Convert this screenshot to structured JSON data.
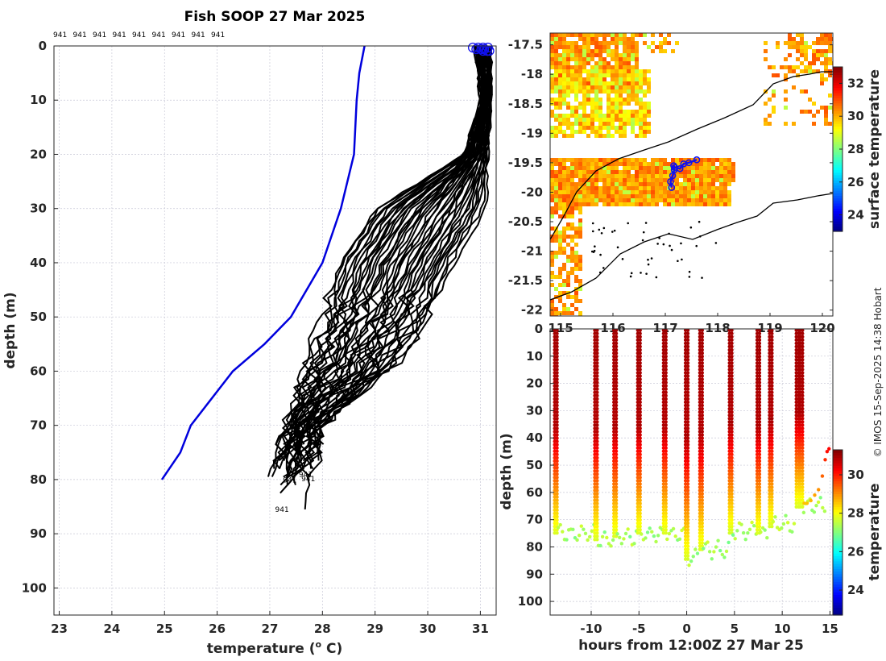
{
  "colors": {
    "model_profile": "#0000dd",
    "ship_profiles": "#000000",
    "start_markers": "#1010ee",
    "track": "#1010ee",
    "coast": "#000000",
    "grid": "#c8c8d6",
    "axis": "#262626"
  },
  "chart_data": [
    {
      "id": "profiles",
      "type": "line",
      "title": "Fish SOOP 27 Mar 2025",
      "xlabel": "temperature (o C)",
      "ylabel": "depth (m)",
      "xlim": [
        22.9,
        31.3
      ],
      "ylim": [
        105,
        0
      ],
      "xticks": [
        23,
        24,
        25,
        26,
        27,
        28,
        29,
        30,
        31
      ],
      "yticks": [
        0,
        10,
        20,
        30,
        40,
        50,
        60,
        70,
        80,
        90,
        100
      ],
      "station_ids": [
        "941",
        "941",
        "941",
        "941",
        "941",
        "941",
        "941",
        "941",
        "941"
      ],
      "end_labels": [
        "941",
        "941",
        "941",
        "941"
      ],
      "model_profile": {
        "temperature": [
          28.8,
          28.7,
          28.65,
          28.6,
          28.35,
          28.0,
          27.4,
          26.9,
          26.3,
          25.5,
          25.3,
          24.95
        ],
        "depth": [
          0,
          5,
          10,
          20,
          30,
          40,
          50,
          55,
          60,
          70,
          75,
          80
        ]
      },
      "ship_profile_count": 40,
      "ship_profiles_envelope": {
        "depth": [
          0,
          10,
          20,
          30,
          40,
          50,
          60,
          70,
          80
        ],
        "t_warm": [
          31.2,
          31.2,
          31.15,
          31.1,
          30.5,
          30.0,
          29.3,
          28.0,
          27.8
        ],
        "t_cool": [
          30.9,
          31.0,
          30.7,
          29.0,
          28.3,
          28.0,
          27.6,
          27.3,
          27.0
        ]
      }
    },
    {
      "id": "sst_map",
      "type": "heatmap",
      "colorbar_label": "surface temperature",
      "colorbar_ticks": [
        24,
        26,
        28,
        30,
        32
      ],
      "clim": [
        23,
        33
      ],
      "xlim": [
        114.8,
        120.2
      ],
      "ylim": [
        -22.1,
        -17.3
      ],
      "yticks": [
        -17.5,
        -18,
        -18.5,
        -19,
        -19.5,
        -20,
        -20.5,
        -21,
        -21.5,
        -22
      ],
      "ytick_labels": [
        "-17.5",
        "-18",
        "-18.5",
        "-19",
        "-19.5",
        "-20",
        "-20.5",
        "-21",
        "-21.5",
        "-22"
      ],
      "xtick_labels": [
        "115",
        "116",
        "117",
        "118",
        "119",
        "120"
      ],
      "track": {
        "lon": [
          117.12,
          117.1,
          117.14,
          117.17,
          117.16,
          117.18,
          117.28,
          117.35,
          117.45,
          117.6
        ],
        "lat": [
          -19.92,
          -19.82,
          -19.72,
          -19.62,
          -19.55,
          -19.58,
          -19.6,
          -19.52,
          -19.5,
          -19.45
        ]
      }
    },
    {
      "id": "depth_time",
      "type": "scatter",
      "xlabel": "hours from 12:00Z 27 Mar 25",
      "ylabel": "depth (m)",
      "colorbar_label": "temperature",
      "colorbar_ticks": [
        24,
        26,
        28,
        30
      ],
      "clim": [
        22.7,
        31.3
      ],
      "xlim": [
        -14.3,
        15.3
      ],
      "ylim": [
        105,
        0
      ],
      "xticks": [
        -10,
        -5,
        0,
        5,
        10,
        15
      ],
      "yticks": [
        0,
        10,
        20,
        30,
        40,
        50,
        60,
        70,
        80,
        90,
        100
      ],
      "casts": [
        {
          "t": -13.7,
          "max_depth": 76
        },
        {
          "t": -9.5,
          "max_depth": 78
        },
        {
          "t": -7.5,
          "max_depth": 77
        },
        {
          "t": -5.0,
          "max_depth": 76
        },
        {
          "t": -2.3,
          "max_depth": 76
        },
        {
          "t": 0.0,
          "max_depth": 85
        },
        {
          "t": 1.5,
          "max_depth": 82
        },
        {
          "t": 4.6,
          "max_depth": 75
        },
        {
          "t": 7.5,
          "max_depth": 76
        },
        {
          "t": 8.8,
          "max_depth": 73
        },
        {
          "t": 11.6,
          "max_depth": 66
        },
        {
          "t": 12.0,
          "max_depth": 66
        }
      ]
    }
  ],
  "credit": "© IMOS 15-Sep-2025 14:38 Hobart"
}
